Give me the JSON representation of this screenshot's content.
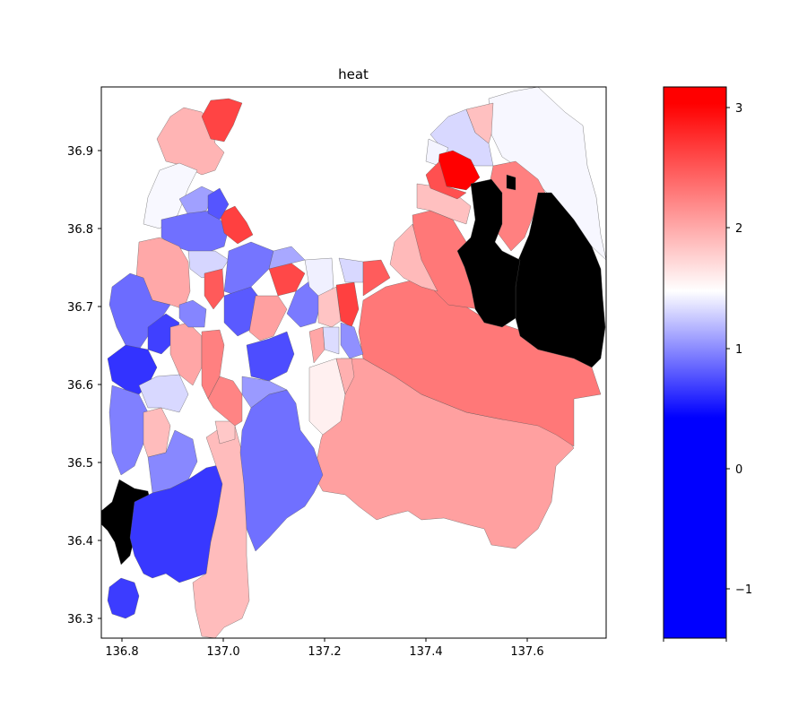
{
  "chart_data": {
    "type": "heatmap",
    "title": "heat",
    "xlabel": "",
    "ylabel": "",
    "x_ticks": [
      "136.8",
      "137.0",
      "137.2",
      "137.4",
      "137.6"
    ],
    "y_ticks": [
      "36.9",
      "36.8",
      "36.7",
      "36.6",
      "36.5",
      "36.4",
      "36.3"
    ],
    "xlim": [
      136.77,
      137.765
    ],
    "ylim": [
      36.272,
      36.985
    ],
    "colorbar": {
      "colormap": "bwr",
      "range": [
        -1.4,
        3.18
      ],
      "ticks": [
        "3",
        "2",
        "1",
        "0",
        "−1"
      ],
      "tick_values": [
        3,
        2,
        1,
        0,
        -1
      ]
    },
    "missing_color": "#000000",
    "colors": {
      "strong_red": "#ff0000",
      "light_red": "#ffa0a0",
      "white": "#ffffff",
      "strong_blue": "#3a3aff",
      "no_data": "#000000"
    }
  }
}
